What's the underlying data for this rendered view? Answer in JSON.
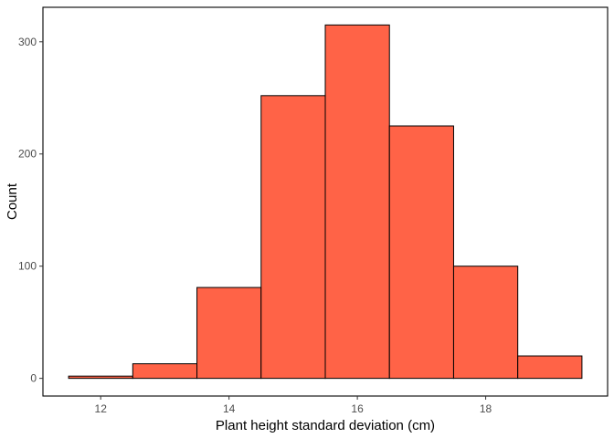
{
  "chart_data": {
    "type": "histogram",
    "title": "",
    "xlabel": "Plant height standard deviation (cm)",
    "ylabel": "Count",
    "bin_width": 1,
    "bins": [
      {
        "x_start": 11.5,
        "x_end": 12.5,
        "count": 2
      },
      {
        "x_start": 12.5,
        "x_end": 13.5,
        "count": 13
      },
      {
        "x_start": 13.5,
        "x_end": 14.5,
        "count": 81
      },
      {
        "x_start": 14.5,
        "x_end": 15.5,
        "count": 252
      },
      {
        "x_start": 15.5,
        "x_end": 16.5,
        "count": 315
      },
      {
        "x_start": 16.5,
        "x_end": 17.5,
        "count": 225
      },
      {
        "x_start": 17.5,
        "x_end": 18.5,
        "count": 100
      },
      {
        "x_start": 18.5,
        "x_end": 19.5,
        "count": 20
      }
    ],
    "xlim": [
      11.1,
      19.9
    ],
    "ylim": [
      -15.75,
      330.75
    ],
    "x_ticks": [
      12,
      14,
      16,
      18
    ],
    "y_ticks": [
      0,
      100,
      200,
      300
    ],
    "bar_fill": "#FF6347",
    "bar_outline": "#000000",
    "panel_border": "#000000",
    "grid": false,
    "legend": "none"
  }
}
